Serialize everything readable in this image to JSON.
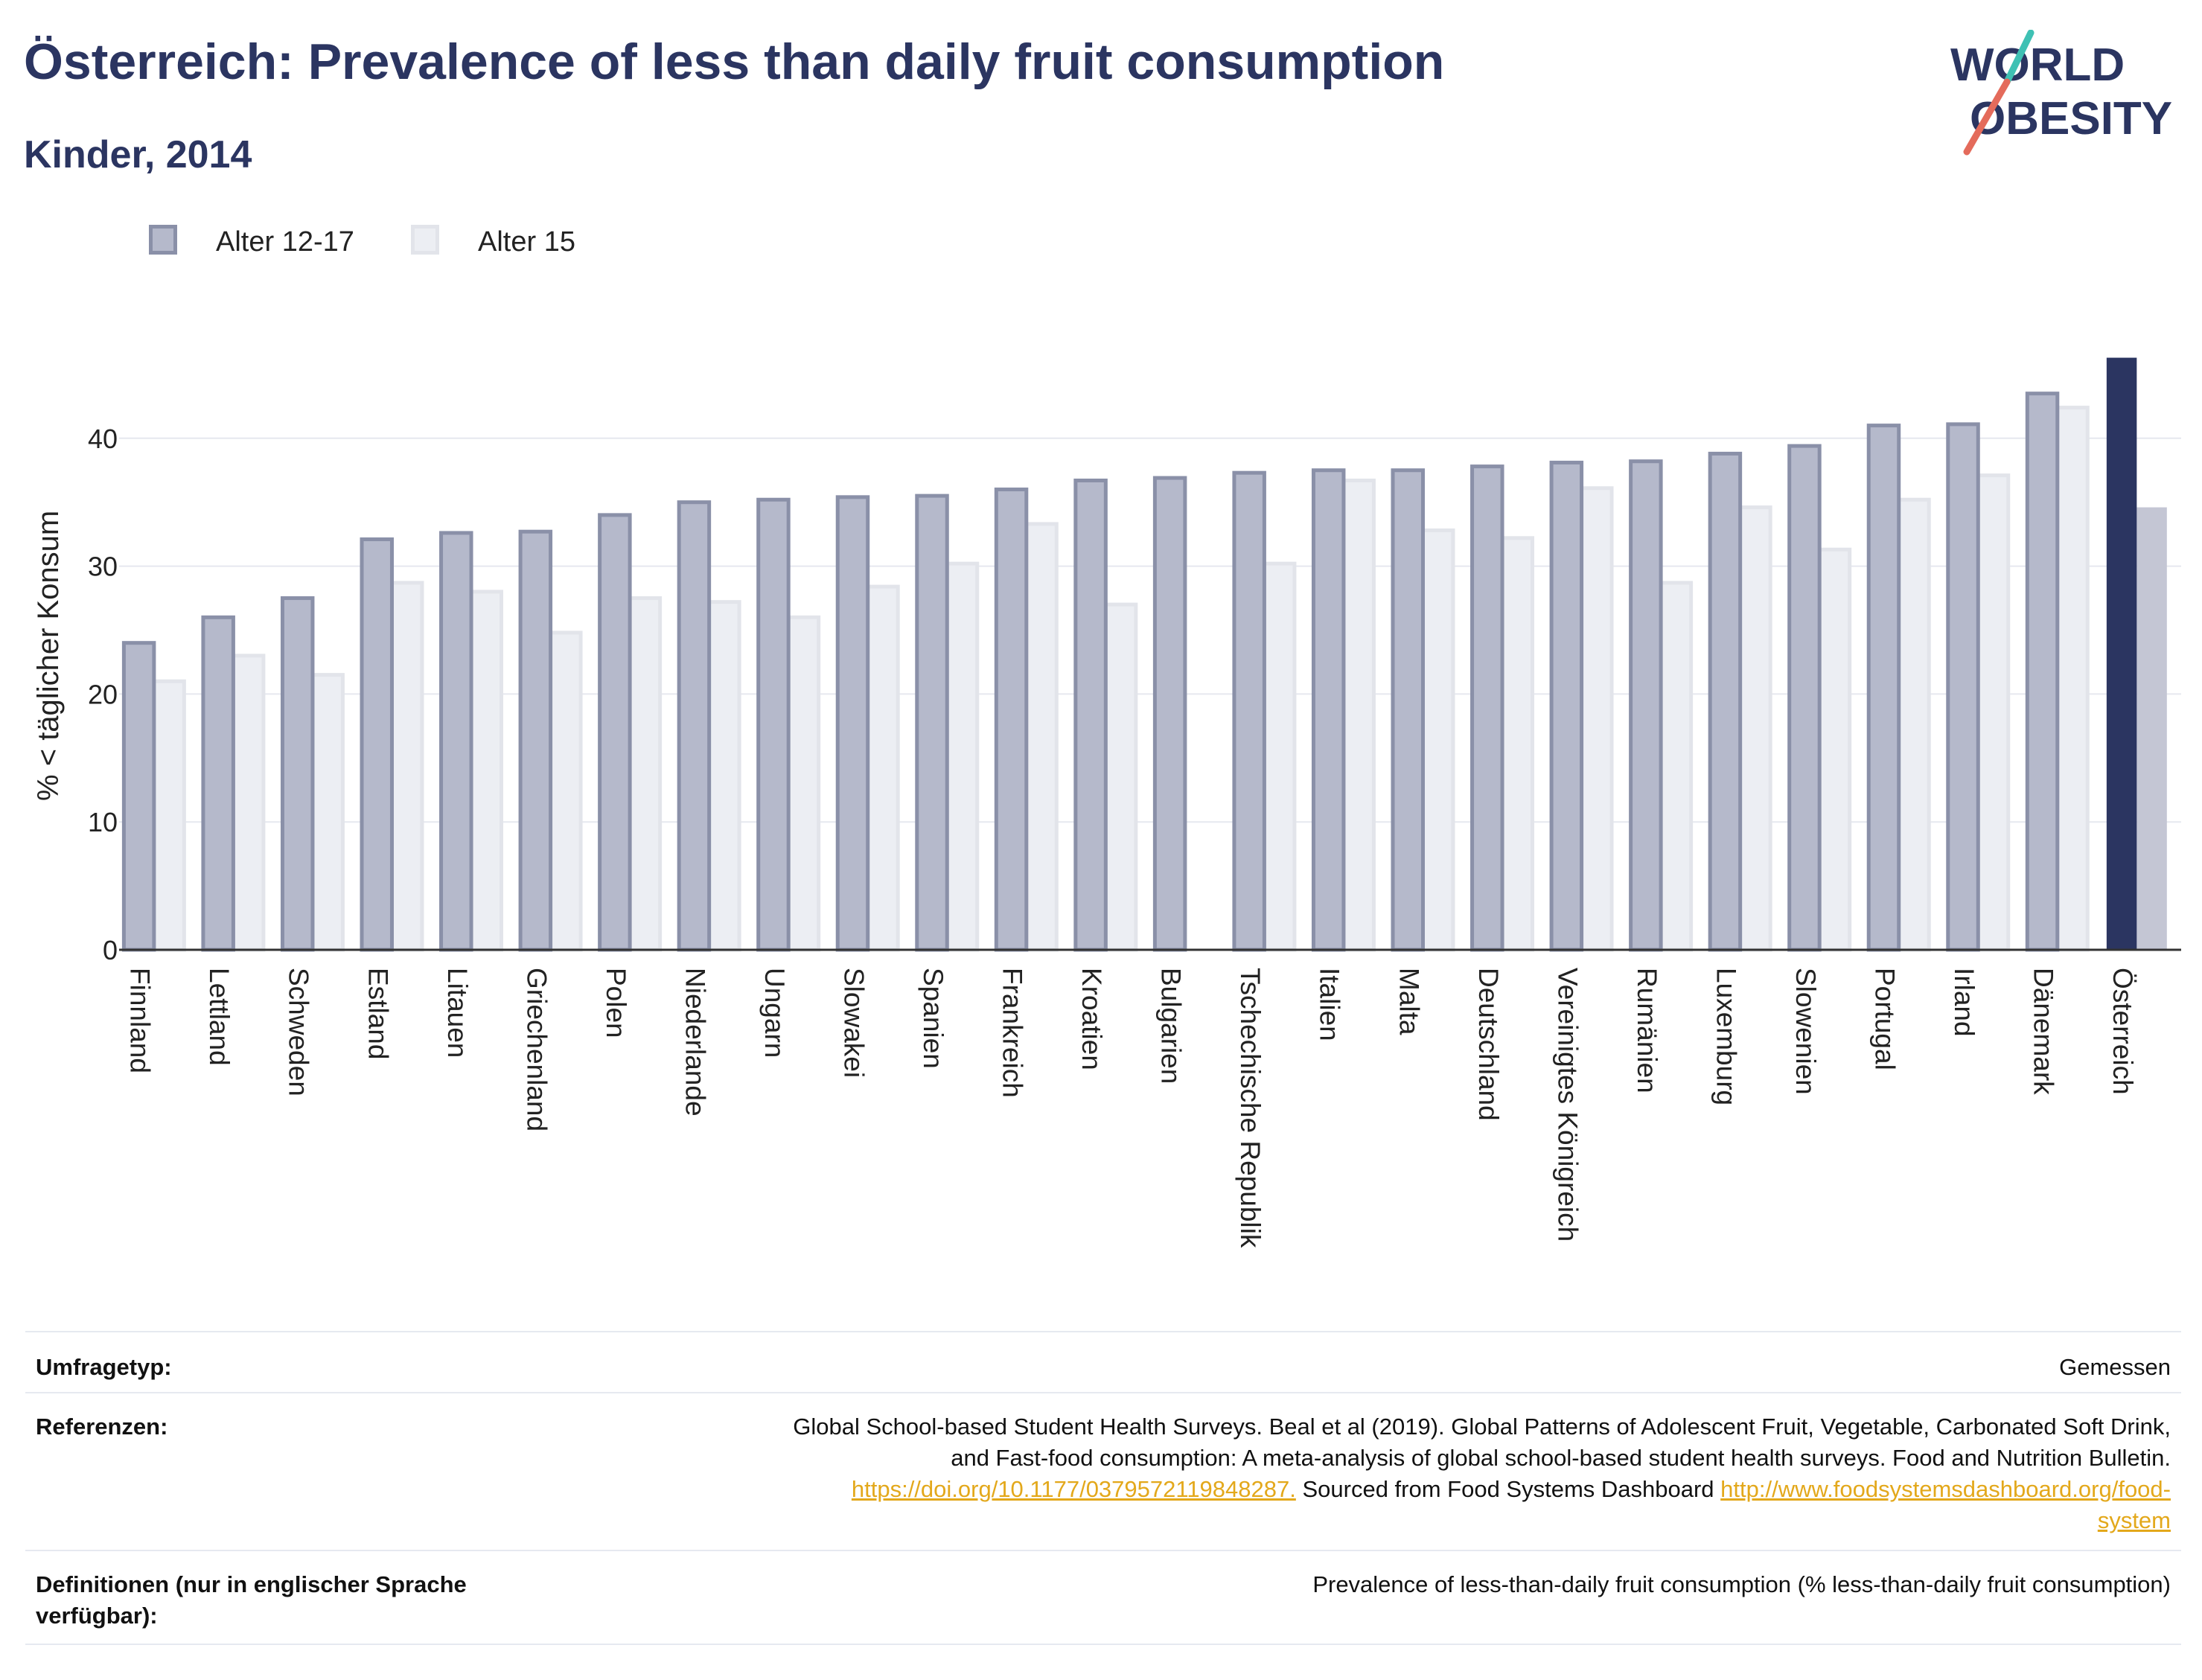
{
  "header": {
    "title": "Österreich: Prevalence of less than daily fruit consumption",
    "subtitle": "Kinder, 2014"
  },
  "logo": {
    "line1": "WORLD",
    "line2": "OBESITY"
  },
  "legend": [
    {
      "label": "Alter 12-17",
      "color": "#b5b9cb",
      "stroke": "#8a90a8"
    },
    {
      "label": "Alter 15",
      "color": "#eceef3",
      "stroke": "#e2e4ea"
    }
  ],
  "colors": {
    "highlight_primary": "#2b3561",
    "highlight_secondary": "#c4c6d4"
  },
  "chart_data": {
    "type": "bar",
    "ylabel": "% < täglicher Konsum",
    "ylim": [
      0,
      46
    ],
    "yticks": [
      0,
      10,
      20,
      30,
      40
    ],
    "grid": true,
    "legend_position": "top-left",
    "categories": [
      "Finnland",
      "Lettland",
      "Schweden",
      "Estland",
      "Litauen",
      "Griechenland",
      "Polen",
      "Niederlande",
      "Ungarn",
      "Slowakei",
      "Spanien",
      "Frankreich",
      "Kroatien",
      "Bulgarien",
      "Tschechische Republik",
      "Italien",
      "Malta",
      "Deutschland",
      "Vereinigtes Königreich",
      "Rumänien",
      "Luxemburg",
      "Slowenien",
      "Portugal",
      "Irland",
      "Dänemark",
      "Österreich"
    ],
    "highlight": "Österreich",
    "series": [
      {
        "name": "Alter 12-17",
        "values": [
          24.0,
          26.0,
          27.5,
          32.1,
          32.6,
          32.7,
          34.0,
          35.0,
          35.2,
          35.4,
          35.5,
          36.0,
          36.7,
          36.9,
          37.3,
          37.5,
          37.5,
          37.8,
          38.1,
          38.2,
          38.8,
          39.4,
          41.0,
          41.1,
          43.5,
          46.3
        ]
      },
      {
        "name": "Alter 15",
        "values": [
          21.0,
          23.0,
          21.5,
          28.7,
          28.0,
          24.8,
          27.5,
          27.2,
          26.0,
          28.4,
          30.2,
          33.3,
          27.0,
          null,
          30.2,
          36.7,
          32.8,
          32.2,
          36.1,
          28.7,
          34.6,
          31.3,
          35.2,
          37.1,
          42.4,
          34.6
        ]
      }
    ]
  },
  "info": {
    "survey_label": "Umfragetyp:",
    "survey_value": "Gemessen",
    "references_label": "Referenzen:",
    "references_line1": "Global School-based Student Health Surveys. Beal et al (2019). Global Patterns of Adolescent Fruit, Vegetable, Carbonated Soft Drink,",
    "references_line2": "and Fast-food consumption: A meta-analysis of global school-based student health surveys. Food and Nutrition Bulletin.",
    "references_link1": "https://doi.org/10.1177/0379572119848287.",
    "references_mid": " Sourced from Food Systems Dashboard ",
    "references_link2a": "http://www.foodsystemsdashboard.org/food-",
    "references_link2b": "system",
    "definitions_label_1": "Definitionen (nur in englischer Sprache",
    "definitions_label_2": "verfügbar):",
    "definitions_value": "Prevalence of less-than-daily fruit consumption (% less-than-daily fruit consumption)"
  }
}
